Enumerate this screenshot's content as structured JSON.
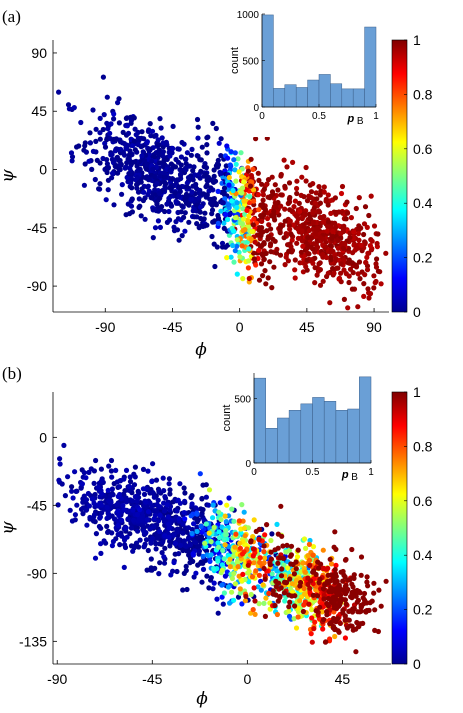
{
  "chart_data": [
    {
      "type": "scatter",
      "panel_label": "(a)",
      "xlabel": "ϕ",
      "ylabel": "ψ",
      "xlim": [
        -125,
        100
      ],
      "ylim": [
        -110,
        100
      ],
      "xticks": [
        -90,
        -45,
        0,
        45,
        90
      ],
      "yticks": [
        -90,
        -45,
        0,
        45,
        90
      ],
      "xtick_labels": [
        "-90",
        "-45",
        "0",
        "45",
        "90"
      ],
      "ytick_labels": [
        "-90",
        "-45",
        "0",
        "45",
        "90"
      ],
      "colorbar": {
        "colormap": "jet",
        "range": [
          0,
          1
        ],
        "ticks": [
          "0",
          "0.2",
          "0.4",
          "0.6",
          "0.8",
          "1"
        ]
      },
      "clouds": [
        {
          "mean_x": -58,
          "mean_y": -2,
          "sd_x": 22,
          "sd_y": 22,
          "corr": -0.55,
          "value": 0.02,
          "count": 620
        },
        {
          "mean_x": 55,
          "mean_y": -50,
          "sd_x": 22,
          "sd_y": 21,
          "corr": -0.5,
          "value": 0.97,
          "count": 560
        },
        {
          "mean_x": 0,
          "mean_y": -28,
          "sd_x": 14,
          "sd_y": 26,
          "corr": -0.45,
          "value": "mixed",
          "count": 420
        }
      ],
      "inset": {
        "type": "histogram",
        "xlabel": "p",
        "xlabel_sub": "B",
        "ylabel": "count",
        "xlim": [
          0,
          1
        ],
        "ylim": [
          0,
          1000
        ],
        "xtick_labels": [
          "0",
          "0.5",
          "1"
        ],
        "ytick_labels": [
          "0",
          "500",
          "1000"
        ],
        "bin_edges": [
          0,
          0.1,
          0.2,
          0.3,
          0.4,
          0.5,
          0.6,
          0.7,
          0.8,
          0.9,
          1.0
        ],
        "counts": [
          990,
          200,
          240,
          210,
          290,
          350,
          250,
          195,
          195,
          860
        ],
        "bar_color": "#6a9fd6"
      }
    },
    {
      "type": "scatter",
      "panel_label": "(b)",
      "xlabel": "ϕ",
      "ylabel": "ψ",
      "xlim": [
        -92,
        68
      ],
      "ylim": [
        -150,
        30
      ],
      "xticks": [
        -90,
        -45,
        0,
        45
      ],
      "yticks": [
        -135,
        -90,
        -45,
        0
      ],
      "xtick_labels": [
        "-90",
        "-45",
        "0",
        "45"
      ],
      "ytick_labels": [
        "-135",
        "-90",
        "-45",
        "0"
      ],
      "colorbar": {
        "colormap": "jet",
        "range": [
          0,
          1
        ],
        "ticks": [
          "0",
          "0.2",
          "0.4",
          "0.6",
          "0.8",
          "1"
        ]
      },
      "clouds": [
        {
          "mean_x": -52,
          "mean_y": -52,
          "sd_x": 17,
          "sd_y": 15,
          "corr": -0.55,
          "value": 0.03,
          "count": 560
        },
        {
          "mean_x": -8,
          "mean_y": -75,
          "sd_x": 16,
          "sd_y": 17,
          "corr": -0.55,
          "value": "mixed-low",
          "count": 560
        },
        {
          "mean_x": 32,
          "mean_y": -100,
          "sd_x": 13,
          "sd_y": 15,
          "corr": -0.5,
          "value": "mixed-high",
          "count": 620
        }
      ],
      "inset": {
        "type": "histogram",
        "xlabel": "p",
        "xlabel_sub": "B",
        "ylabel": "count",
        "xlim": [
          0,
          1
        ],
        "ylim": [
          0,
          700
        ],
        "xtick_labels": [
          "0",
          "0.5",
          "1"
        ],
        "ytick_labels": [
          "0",
          "500"
        ],
        "bin_edges": [
          0,
          0.1,
          0.2,
          0.3,
          0.4,
          0.5,
          0.6,
          0.7,
          0.8,
          0.9,
          1.0
        ],
        "counts": [
          660,
          270,
          350,
          410,
          460,
          510,
          480,
          410,
          420,
          670
        ],
        "bar_color": "#6a9fd6"
      }
    }
  ]
}
